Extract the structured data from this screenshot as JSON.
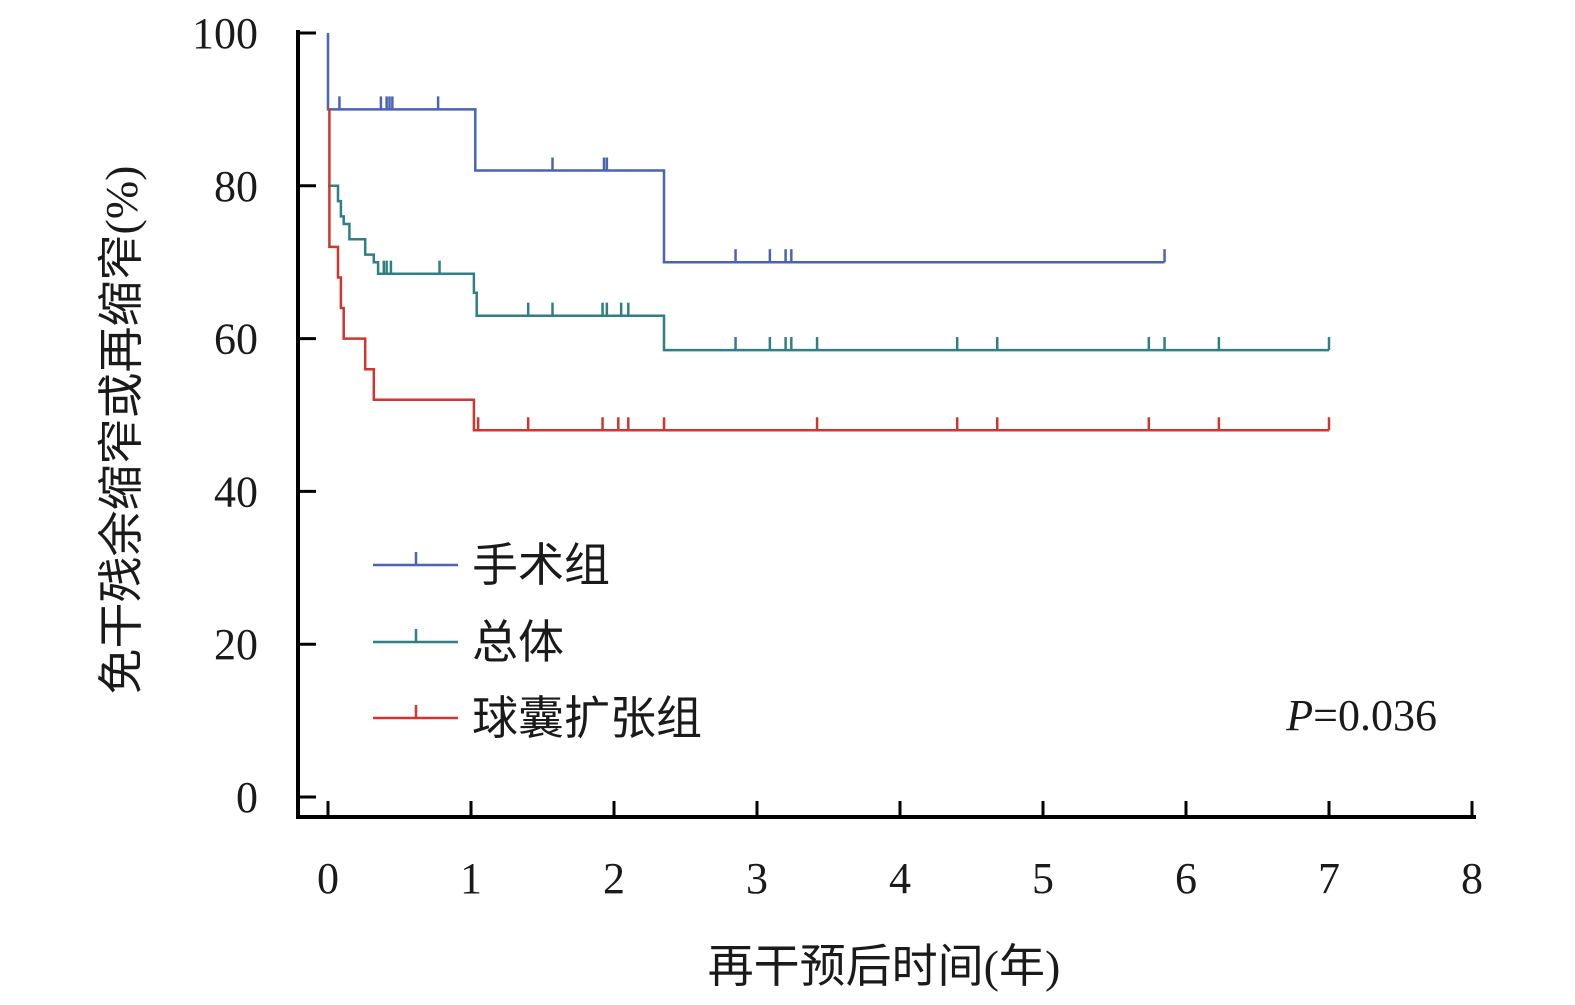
{
  "chart_data": {
    "type": "line",
    "subtype": "kaplan-meier step curves with censor marks",
    "xlabel": "再干预后时间(年)",
    "ylabel": "免干残余缩窄或再缩窄(%)",
    "xlim": [
      0,
      8
    ],
    "ylim": [
      0,
      100
    ],
    "xticks": [
      "0",
      "1",
      "2",
      "3",
      "4",
      "5",
      "6",
      "7",
      "8"
    ],
    "yticks": [
      "0",
      "20",
      "40",
      "60",
      "80",
      "100"
    ],
    "legend_position": "bottom-left inside",
    "annotation": {
      "italic": "P",
      "text": "=0.036"
    },
    "series": [
      {
        "name": "手术组",
        "color": "#4a63b3",
        "steps": [
          [
            0,
            100
          ],
          [
            0,
            90
          ],
          [
            1.03,
            90
          ],
          [
            1.03,
            82
          ],
          [
            2.35,
            82
          ],
          [
            2.35,
            70
          ],
          [
            5.85,
            70
          ]
        ],
        "censored": [
          [
            0.08,
            90
          ],
          [
            0.37,
            90
          ],
          [
            0.41,
            90
          ],
          [
            0.43,
            90
          ],
          [
            0.45,
            90
          ],
          [
            0.77,
            90
          ],
          [
            1.57,
            82
          ],
          [
            1.93,
            82
          ],
          [
            1.95,
            82
          ],
          [
            2.85,
            70
          ],
          [
            3.09,
            70
          ],
          [
            3.2,
            70
          ],
          [
            3.24,
            70
          ],
          [
            5.85,
            70
          ]
        ]
      },
      {
        "name": "总体",
        "color": "#2e7f86",
        "steps": [
          [
            0,
            80
          ],
          [
            0.07,
            80
          ],
          [
            0.07,
            78
          ],
          [
            0.09,
            78
          ],
          [
            0.09,
            76
          ],
          [
            0.11,
            76
          ],
          [
            0.11,
            75
          ],
          [
            0.15,
            75
          ],
          [
            0.15,
            73
          ],
          [
            0.26,
            73
          ],
          [
            0.26,
            71
          ],
          [
            0.32,
            71
          ],
          [
            0.32,
            70
          ],
          [
            0.35,
            70
          ],
          [
            0.35,
            68.5
          ],
          [
            1.02,
            68.5
          ],
          [
            1.02,
            66
          ],
          [
            1.04,
            66
          ],
          [
            1.04,
            63
          ],
          [
            2.35,
            63
          ],
          [
            2.35,
            58.5
          ],
          [
            7.0,
            58.5
          ]
        ],
        "censored": [
          [
            0.39,
            68.5
          ],
          [
            0.41,
            68.5
          ],
          [
            0.44,
            68.5
          ],
          [
            0.78,
            68.5
          ],
          [
            1.4,
            63
          ],
          [
            1.57,
            63
          ],
          [
            1.92,
            63
          ],
          [
            1.95,
            63
          ],
          [
            2.05,
            63
          ],
          [
            2.1,
            63
          ],
          [
            2.85,
            58.5
          ],
          [
            3.09,
            58.5
          ],
          [
            3.2,
            58.5
          ],
          [
            3.24,
            58.5
          ],
          [
            3.42,
            58.5
          ],
          [
            4.4,
            58.5
          ],
          [
            4.68,
            58.5
          ],
          [
            5.74,
            58.5
          ],
          [
            5.85,
            58.5
          ],
          [
            6.23,
            58.5
          ],
          [
            7.0,
            58.5
          ]
        ]
      },
      {
        "name": "球囊扩张组",
        "color": "#d0352e",
        "steps": [
          [
            0,
            90
          ],
          [
            0.01,
            90
          ],
          [
            0.01,
            72
          ],
          [
            0.07,
            72
          ],
          [
            0.07,
            68
          ],
          [
            0.09,
            68
          ],
          [
            0.09,
            64
          ],
          [
            0.11,
            64
          ],
          [
            0.11,
            60
          ],
          [
            0.26,
            60
          ],
          [
            0.26,
            56
          ],
          [
            0.32,
            56
          ],
          [
            0.32,
            52
          ],
          [
            1.02,
            52
          ],
          [
            1.02,
            48
          ],
          [
            7.0,
            48
          ]
        ],
        "censored": [
          [
            1.05,
            48
          ],
          [
            1.4,
            48
          ],
          [
            1.92,
            48
          ],
          [
            2.03,
            48
          ],
          [
            2.1,
            48
          ],
          [
            2.35,
            48
          ],
          [
            3.42,
            48
          ],
          [
            4.4,
            48
          ],
          [
            4.68,
            48
          ],
          [
            5.74,
            48
          ],
          [
            6.23,
            48
          ],
          [
            7.0,
            48
          ]
        ]
      }
    ]
  }
}
